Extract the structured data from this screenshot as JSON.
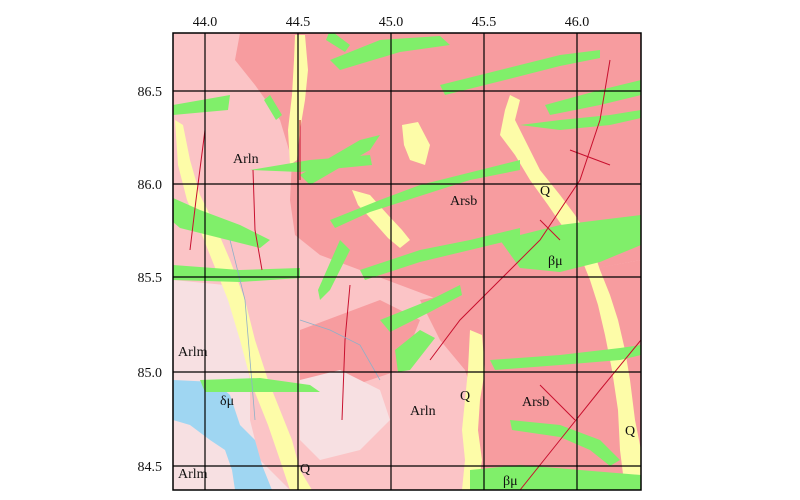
{
  "map": {
    "x_ticks": [
      "44.0",
      "44.5",
      "45.0",
      "45.5",
      "46.0"
    ],
    "y_ticks": [
      "86.5",
      "86.0",
      "85.5",
      "85.0",
      "84.5"
    ],
    "units": [
      {
        "code": "Arln",
        "id": "arln-1"
      },
      {
        "code": "Arsb",
        "id": "arsb-1"
      },
      {
        "code": "Q",
        "id": "q-1"
      },
      {
        "code": "βμ",
        "id": "bm-1"
      },
      {
        "code": "Arlm",
        "id": "arlm-1"
      },
      {
        "code": "δμ",
        "id": "dm-1"
      },
      {
        "code": "Arln",
        "id": "arln-2"
      },
      {
        "code": "Q",
        "id": "q-2"
      },
      {
        "code": "Arsb",
        "id": "arsb-2"
      },
      {
        "code": "Q",
        "id": "q-3"
      },
      {
        "code": "Arlm",
        "id": "arlm-2"
      },
      {
        "code": "Q",
        "id": "q-4"
      },
      {
        "code": "βμ",
        "id": "bm-2"
      }
    ],
    "colors": {
      "arln_fill": "#fbc4c6",
      "arsb_fill": "#f79c9f",
      "arlm_fill": "#f7e0e2",
      "q_fill": "#fdfca8",
      "beta_mu_fill": "#80ef6a",
      "delta_mu_fill": "#9fd6f2",
      "fault_color": "#c8102e",
      "grid_color": "#000000"
    }
  }
}
